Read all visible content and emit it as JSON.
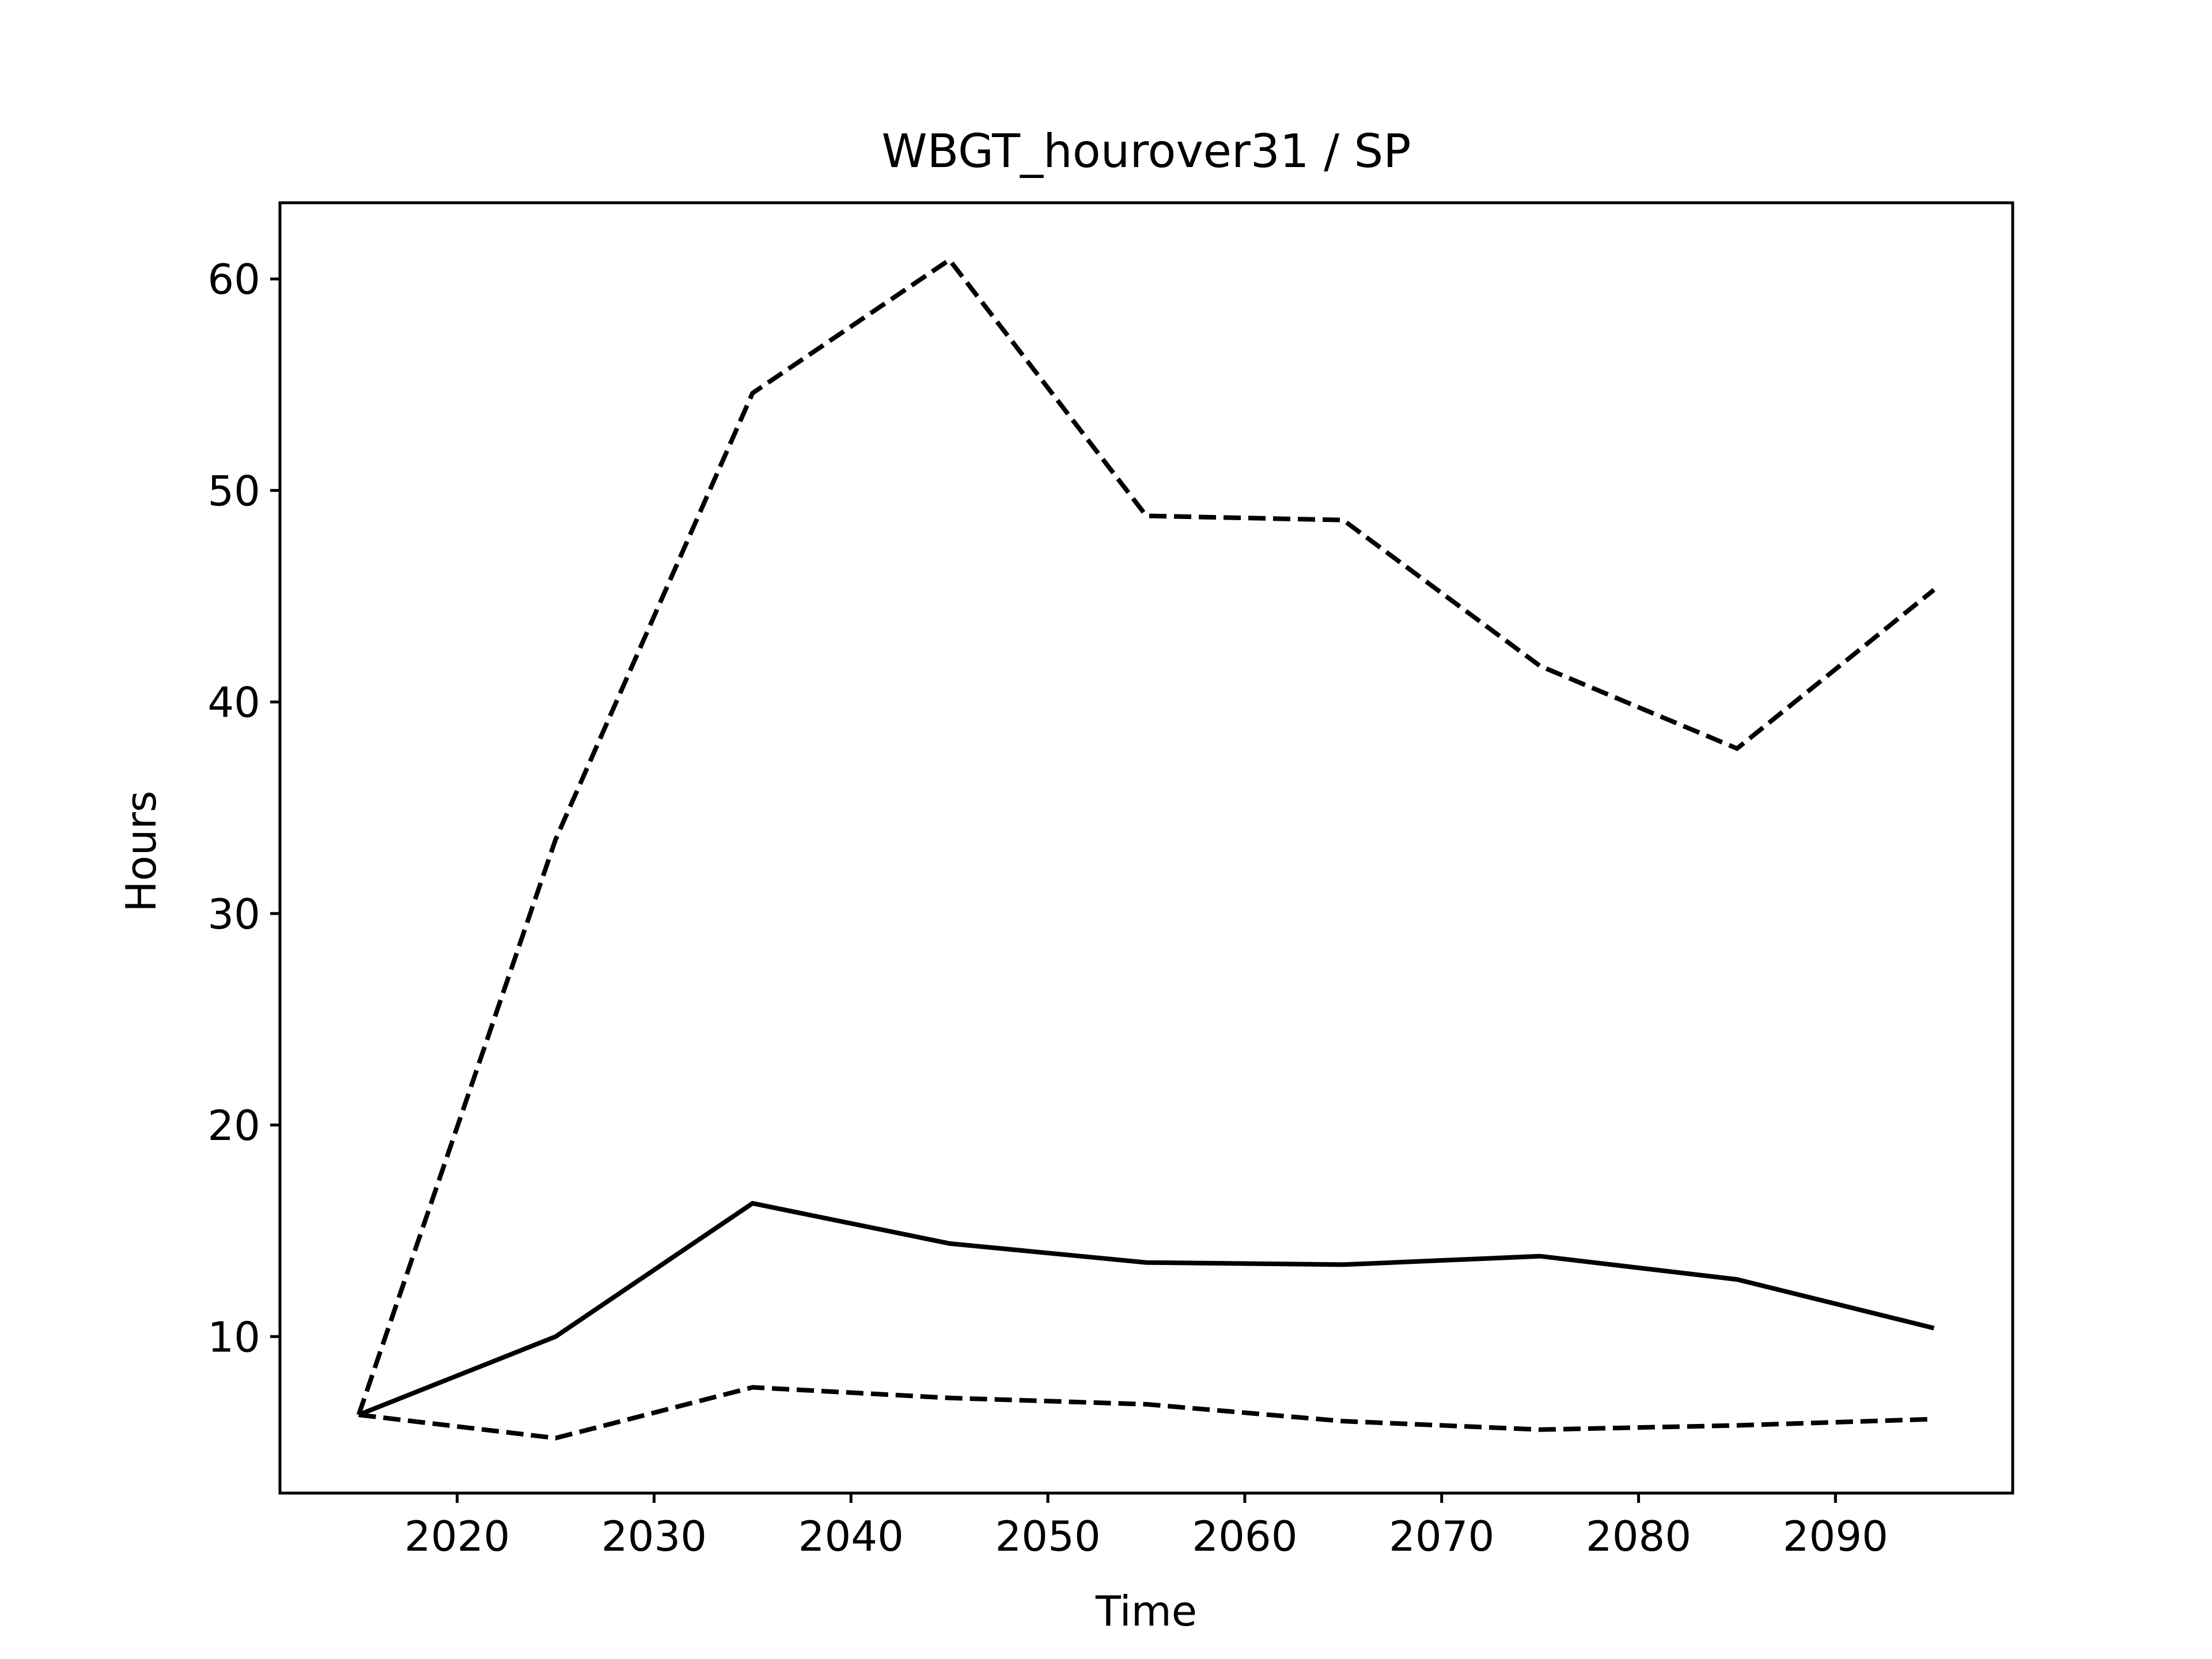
{
  "chart_data": {
    "type": "line",
    "title": "WBGT_hourover31 / SP",
    "xlabel": "Time",
    "ylabel": "Hours",
    "xlim": [
      2011,
      2099
    ],
    "ylim": [
      2.6,
      63.6
    ],
    "xticks": [
      2020,
      2030,
      2040,
      2050,
      2060,
      2070,
      2080,
      2090
    ],
    "yticks": [
      10,
      20,
      30,
      40,
      50,
      60
    ],
    "grid": false,
    "legend": "none",
    "x": [
      2015,
      2025,
      2035,
      2045,
      2055,
      2065,
      2075,
      2085,
      2095
    ],
    "series": [
      {
        "style": "solid",
        "color": "#000000",
        "values": [
          6.3,
          10.0,
          16.3,
          14.4,
          13.5,
          13.4,
          13.8,
          12.7,
          10.4
        ]
      },
      {
        "style": "dashed",
        "color": "#000000",
        "values": [
          6.3,
          33.5,
          54.6,
          60.9,
          48.8,
          48.6,
          41.7,
          37.8,
          45.3
        ]
      },
      {
        "style": "dashed",
        "color": "#000000",
        "values": [
          6.3,
          5.2,
          7.6,
          7.1,
          6.8,
          6.0,
          5.6,
          5.8,
          6.1
        ]
      }
    ]
  }
}
